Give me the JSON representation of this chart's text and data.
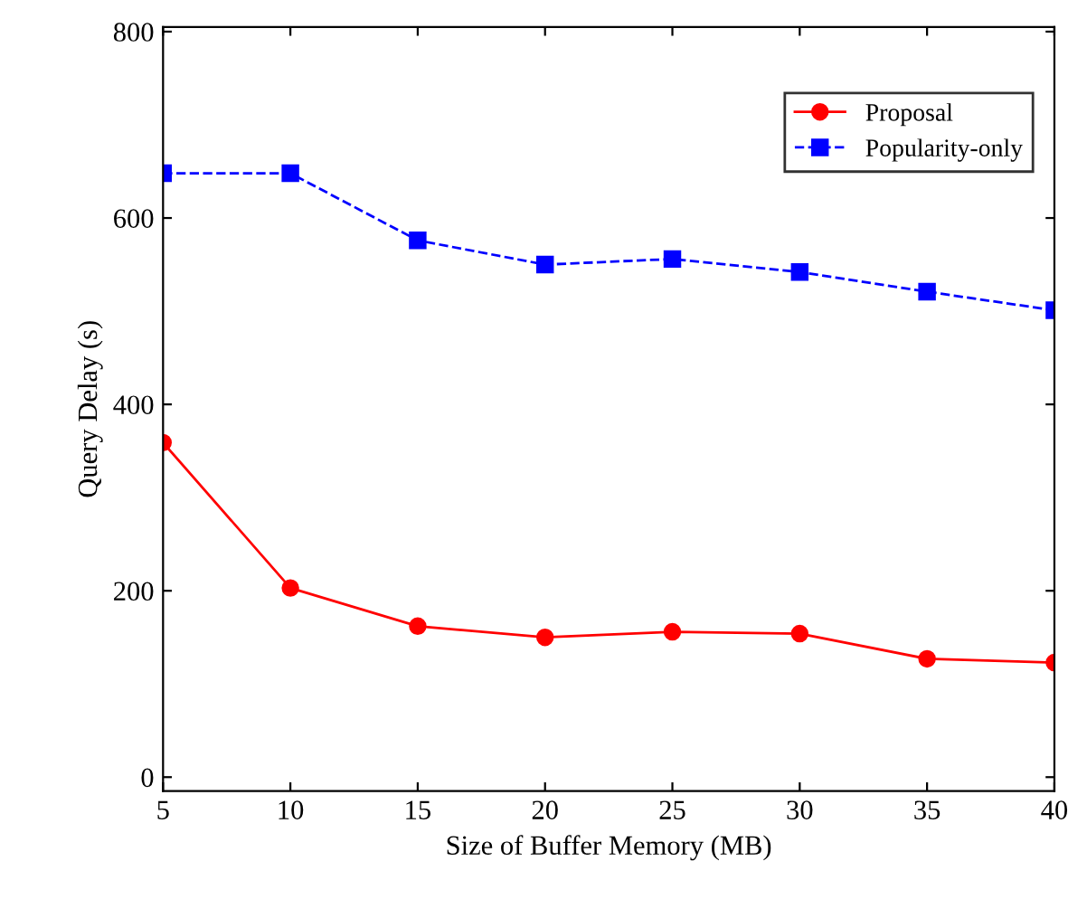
{
  "chart_data": {
    "type": "line",
    "xlabel": "Size of Buffer Memory (MB)",
    "ylabel": "Query Delay (s)",
    "x": [
      5,
      10,
      15,
      20,
      25,
      30,
      35,
      40
    ],
    "series": [
      {
        "name": "Proposal",
        "color": "#ff0000",
        "values": [
          359,
          203,
          162,
          150,
          156,
          154,
          127,
          123
        ],
        "marker": "circle",
        "line_style": "solid"
      },
      {
        "name": "Popularity-only",
        "color": "#0000ff",
        "values": [
          648,
          648,
          576,
          550,
          556,
          542,
          521,
          501
        ],
        "marker": "square",
        "line_style": "dashed"
      }
    ],
    "xlim": [
      5,
      40
    ],
    "xticks": [
      5,
      10,
      15,
      20,
      25,
      30,
      35,
      40
    ],
    "ylim": [
      -15,
      805
    ],
    "yticks": [
      0,
      200,
      400,
      600,
      800
    ],
    "grid": false,
    "legend": "top right"
  }
}
